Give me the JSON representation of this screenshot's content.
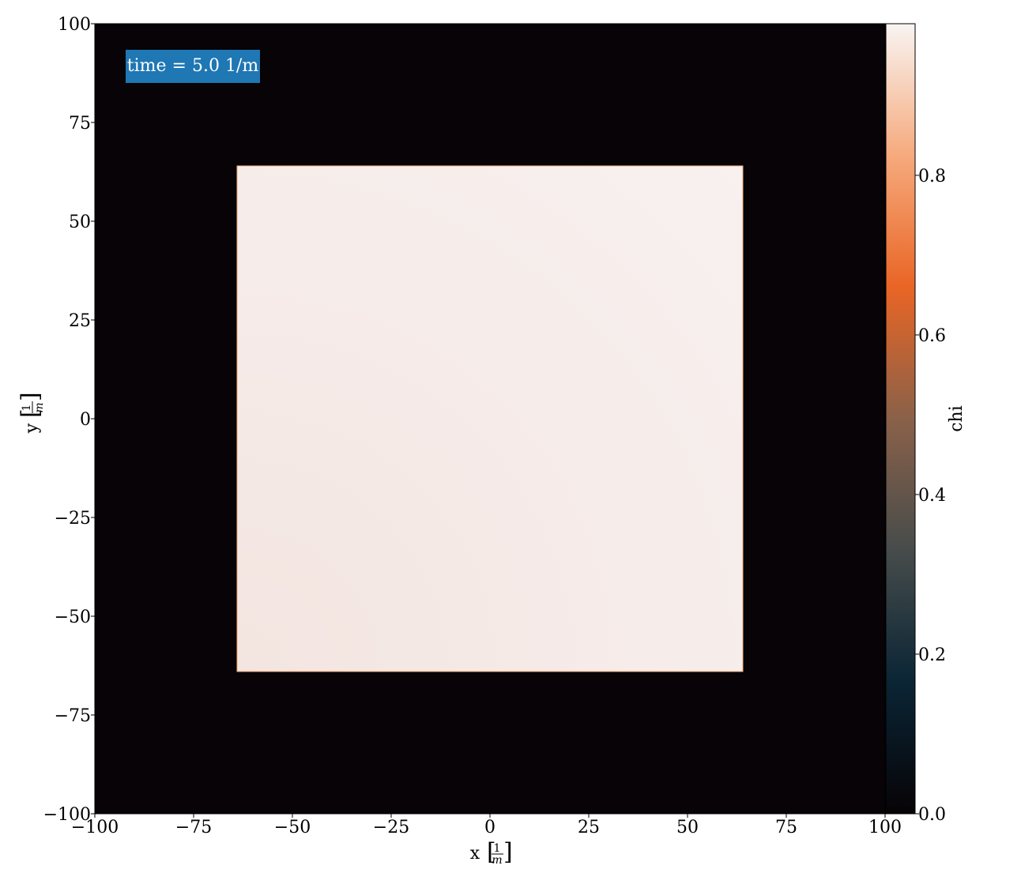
{
  "chart_data": {
    "type": "heatmap",
    "annotation": "time = 5.0 1/m",
    "xlabel": "x",
    "ylabel": "y",
    "axis_unit": {
      "numerator": "1",
      "denominator": "m"
    },
    "xlim": [
      -100,
      100
    ],
    "ylim": [
      -100,
      100
    ],
    "xticks": [
      -100,
      -75,
      -50,
      -25,
      0,
      25,
      50,
      75,
      100
    ],
    "yticks": [
      -100,
      -75,
      -50,
      -25,
      0,
      25,
      50,
      75,
      100
    ],
    "xtick_labels": [
      "−100",
      "−75",
      "−50",
      "−25",
      "0",
      "25",
      "50",
      "75",
      "100"
    ],
    "ytick_labels": [
      "−100",
      "−75",
      "−50",
      "−25",
      "0",
      "25",
      "50",
      "75",
      "100"
    ],
    "background_value": 0.0,
    "region": {
      "x": [
        -64,
        64
      ],
      "y": [
        -64,
        64
      ],
      "value_range": [
        0.95,
        0.99
      ]
    },
    "colorbar": {
      "label": "chi",
      "range": [
        0.0,
        0.99
      ],
      "ticks": [
        0.0,
        0.2,
        0.4,
        0.6,
        0.8
      ],
      "tick_labels": [
        "0.0",
        "0.2",
        "0.4",
        "0.6",
        "0.8"
      ]
    },
    "grid": false,
    "colors": {
      "background": "#070306",
      "region": "#f3e8e5",
      "region_edge": "#f4a870",
      "annotation_box": "#1f77b4",
      "colormap_stops": [
        "#070306",
        "#0a2535",
        "#474c4b",
        "#8a6149",
        "#e96525",
        "#f6aa7d",
        "#f8f4f2"
      ]
    }
  }
}
